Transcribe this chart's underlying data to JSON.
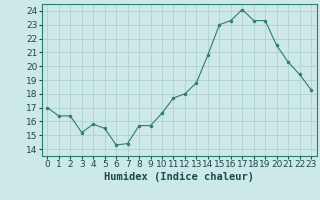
{
  "x": [
    0,
    1,
    2,
    3,
    4,
    5,
    6,
    7,
    8,
    9,
    10,
    11,
    12,
    13,
    14,
    15,
    16,
    17,
    18,
    19,
    20,
    21,
    22,
    23
  ],
  "y": [
    17.0,
    16.4,
    16.4,
    15.2,
    15.8,
    15.5,
    14.3,
    14.4,
    15.7,
    15.7,
    16.6,
    17.7,
    18.0,
    18.8,
    20.8,
    23.0,
    23.3,
    24.1,
    23.3,
    23.3,
    21.5,
    20.3,
    19.4,
    18.3
  ],
  "line_color": "#2e7d6e",
  "marker_color": "#2e7d6e",
  "background_color": "#cce8e8",
  "grid_color": "#aacccc",
  "ylabel_values": [
    14,
    15,
    16,
    17,
    18,
    19,
    20,
    21,
    22,
    23,
    24
  ],
  "ylim": [
    13.5,
    24.5
  ],
  "xlim": [
    -0.5,
    23.5
  ],
  "xlabel": "Humidex (Indice chaleur)",
  "tick_fontsize": 6.5,
  "xlabel_fontsize": 7.5
}
